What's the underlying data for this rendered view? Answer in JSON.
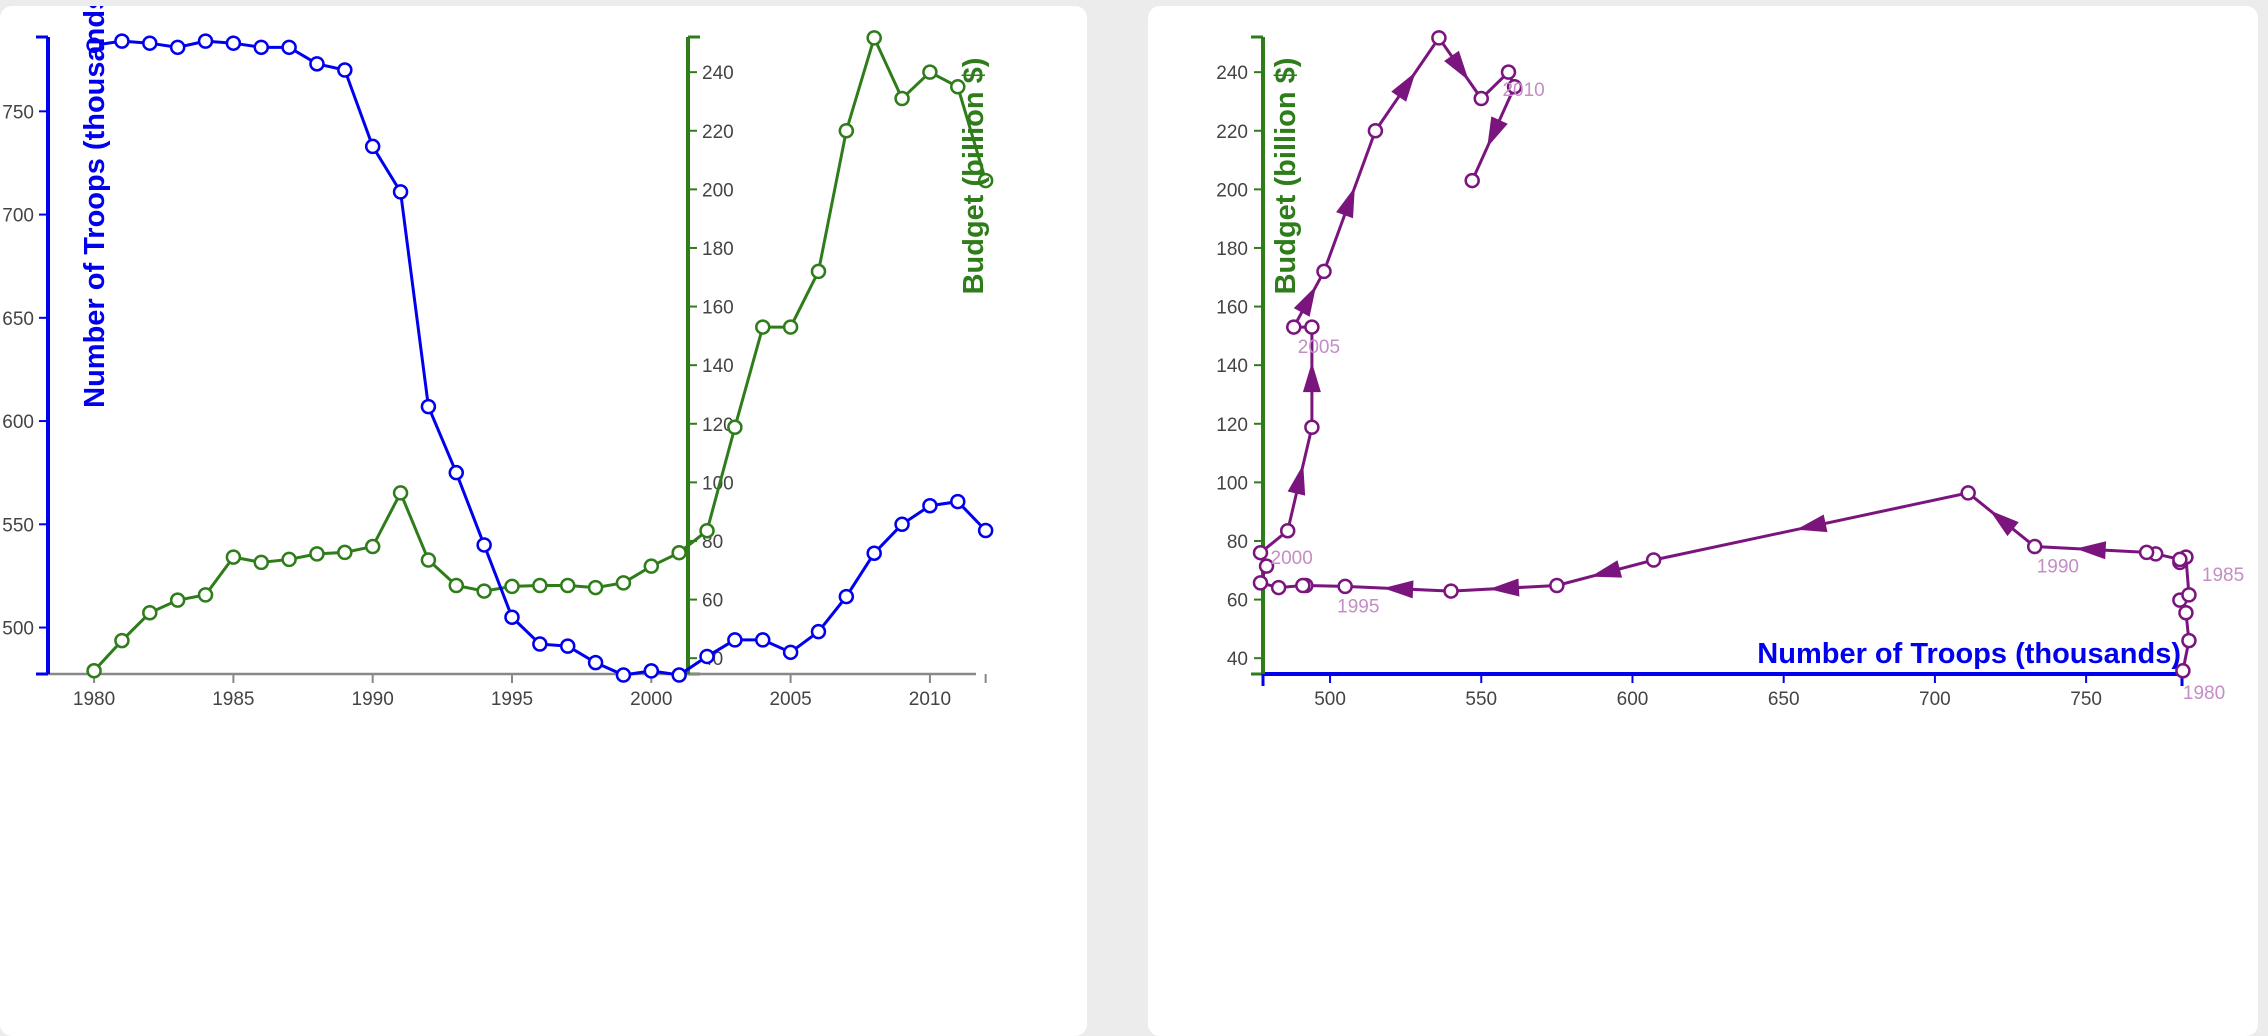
{
  "colors": {
    "troops": "#0000ee",
    "budget": "#2e7d1a",
    "connected": "#7b157e",
    "year_label": "#c48dc5",
    "xaxis_left": "#888888"
  },
  "chart_data": [
    {
      "type": "line",
      "x": [
        1980,
        1981,
        1982,
        1983,
        1984,
        1985,
        1986,
        1987,
        1988,
        1989,
        1990,
        1991,
        1992,
        1993,
        1994,
        1995,
        1996,
        1997,
        1998,
        1999,
        2000,
        2001,
        2002,
        2003,
        2004,
        2005,
        2006,
        2007,
        2008,
        2009,
        2010,
        2011,
        2012
      ],
      "xlim": [
        1979.1,
        2012.3
      ],
      "xticks": [
        "1980",
        "1985",
        "1990",
        "1995",
        "2000",
        "2005",
        "2010"
      ],
      "series": [
        {
          "axis": "left",
          "values": [
            782,
            784,
            783,
            781,
            784,
            783,
            781,
            781,
            773,
            770,
            733,
            711,
            607,
            575,
            540,
            505,
            492,
            491,
            483,
            477,
            479,
            477,
            486,
            494,
            494,
            488,
            498,
            515,
            536,
            550,
            559,
            561,
            547
          ],
          "ylim": [
            477.5,
            786
          ],
          "yticks": [
            "500",
            "550",
            "600",
            "650",
            "700",
            "750"
          ]
        },
        {
          "axis": "right",
          "values": [
            35.7,
            46.0,
            55.5,
            59.8,
            61.6,
            74.5,
            72.7,
            73.7,
            75.6,
            76.1,
            78.1,
            96.4,
            73.5,
            64.8,
            62.9,
            64.5,
            64.8,
            64.8,
            64.1,
            65.7,
            71.4,
            76.0,
            83.5,
            118.8,
            153.0,
            153.0,
            172.0,
            220.0,
            251.7,
            231.0,
            240.0,
            235.0,
            203.0
          ],
          "ylim": [
            34.6,
            252
          ],
          "yticks": [
            "40",
            "60",
            "80",
            "100",
            "120",
            "140",
            "160",
            "180",
            "200",
            "220",
            "240"
          ]
        }
      ],
      "ylabel": "Number of Troops (thousands)",
      "y2label": "Budget (billion $)"
    },
    {
      "type": "scatter",
      "connected": true,
      "years": [
        1980,
        1981,
        1982,
        1983,
        1984,
        1985,
        1986,
        1987,
        1988,
        1989,
        1990,
        1991,
        1992,
        1993,
        1994,
        1995,
        1996,
        1997,
        1998,
        1999,
        2000,
        2001,
        2002,
        2003,
        2004,
        2005,
        2006,
        2007,
        2008,
        2009,
        2010,
        2011,
        2012
      ],
      "x": [
        782,
        784,
        783,
        781,
        784,
        783,
        781,
        781,
        773,
        770,
        733,
        711,
        607,
        575,
        540,
        505,
        492,
        491,
        483,
        477,
        479,
        477,
        486,
        494,
        494,
        488,
        498,
        515,
        536,
        550,
        559,
        561,
        547
      ],
      "y": [
        35.7,
        46.0,
        55.5,
        59.8,
        61.6,
        74.5,
        72.7,
        73.7,
        75.6,
        76.1,
        78.1,
        96.4,
        73.5,
        64.8,
        62.9,
        64.5,
        64.8,
        64.8,
        64.1,
        65.7,
        71.4,
        76.0,
        83.5,
        118.8,
        153.0,
        153.0,
        172.0,
        220.0,
        251.7,
        231.0,
        240.0,
        235.0,
        203.0
      ],
      "year_labels": [
        "1980",
        "1985",
        "1990",
        "1995",
        "2000",
        "2005",
        "2010"
      ],
      "xlim": [
        477.5,
        786
      ],
      "ylim": [
        34.6,
        252
      ],
      "xticks": [
        "500",
        "550",
        "600",
        "650",
        "700",
        "750"
      ],
      "yticks": [
        "40",
        "60",
        "80",
        "100",
        "120",
        "140",
        "160",
        "180",
        "200",
        "220",
        "240"
      ],
      "xlabel": "Number of Troops (thousands)",
      "ylabel": "Budget (billion $)"
    }
  ]
}
